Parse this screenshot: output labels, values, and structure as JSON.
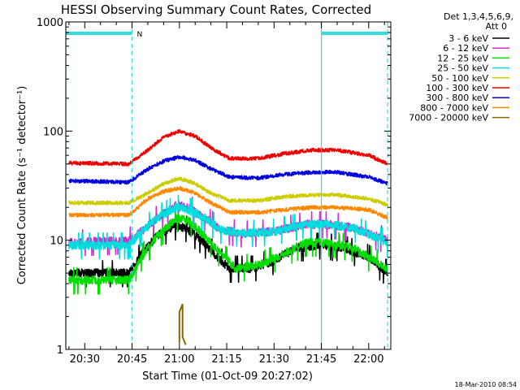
{
  "chart_data": {
    "type": "line",
    "title": "HESSI Observing Summary Count Rates, Corrected",
    "xlabel": "Start Time (01-Oct-09 20:27:02)",
    "ylabel": "Corrected Count Rate (s⁻¹ detector⁻¹)",
    "y_scale": "log",
    "ylim": [
      1,
      1000
    ],
    "xlim": [
      "20:24",
      "22:07"
    ],
    "x_ticks": [
      "20:30",
      "20:45",
      "21:00",
      "21:15",
      "21:30",
      "21:45",
      "22:00"
    ],
    "y_ticks": [
      "1",
      "10",
      "100",
      "1000"
    ],
    "legend_header": [
      "Det 1,3,4,5,6,9,",
      "Att 0"
    ],
    "legend_placement": "right, outside",
    "timestamp": "18-Mar-2010 08:54",
    "annotations": [
      {
        "type": "night_bar",
        "from": "20:24",
        "to": "20:45"
      },
      {
        "type": "night_bar",
        "from": "21:45",
        "to": "22:06"
      },
      {
        "type": "flag_label",
        "text": "N",
        "at": "20:45"
      },
      {
        "type": "vline_solid",
        "at": "20:24"
      },
      {
        "type": "vline_dashed",
        "at": "20:45"
      },
      {
        "type": "vline_solid",
        "at": "21:45"
      },
      {
        "type": "vline_dashed",
        "at": "22:06"
      }
    ],
    "series": [
      {
        "name": "3 - 6 keV",
        "color": "#000000",
        "points": [
          [
            "20:25",
            5
          ],
          [
            "20:44",
            5
          ],
          [
            "20:48",
            7.5
          ],
          [
            "20:53",
            11
          ],
          [
            "20:58",
            13.5
          ],
          [
            "21:02",
            13
          ],
          [
            "21:07",
            10
          ],
          [
            "21:12",
            7
          ],
          [
            "21:16",
            5.5
          ],
          [
            "21:23",
            5.5
          ],
          [
            "21:30",
            6.5
          ],
          [
            "21:37",
            8.5
          ],
          [
            "21:45",
            9
          ],
          [
            "21:52",
            8.5
          ],
          [
            "22:00",
            7
          ],
          [
            "22:06",
            5
          ]
        ]
      },
      {
        "name": "6 - 12 keV",
        "color": "#cc33cc",
        "points": [
          [
            "20:25",
            9.5
          ],
          [
            "20:44",
            10
          ],
          [
            "20:48",
            12
          ],
          [
            "20:53",
            16
          ],
          [
            "20:59",
            21
          ],
          [
            "21:03",
            20
          ],
          [
            "21:08",
            16
          ],
          [
            "21:13",
            12.5
          ],
          [
            "21:20",
            11.5
          ],
          [
            "21:30",
            12
          ],
          [
            "21:40",
            14
          ],
          [
            "21:47",
            14
          ],
          [
            "21:55",
            13
          ],
          [
            "22:06",
            10
          ]
        ]
      },
      {
        "name": "12 - 25 keV",
        "color": "#00dd00",
        "points": [
          [
            "20:25",
            4.3
          ],
          [
            "20:44",
            4.3
          ],
          [
            "20:48",
            7
          ],
          [
            "20:53",
            11
          ],
          [
            "20:59",
            16
          ],
          [
            "21:03",
            15
          ],
          [
            "21:08",
            11
          ],
          [
            "21:13",
            7.5
          ],
          [
            "21:18",
            5.5
          ],
          [
            "21:26",
            6
          ],
          [
            "21:33",
            7.5
          ],
          [
            "21:40",
            9.5
          ],
          [
            "21:47",
            9.5
          ],
          [
            "21:55",
            8.5
          ],
          [
            "22:06",
            5.5
          ]
        ]
      },
      {
        "name": "25 - 50 keV",
        "color": "#00dddd",
        "points": [
          [
            "20:25",
            9
          ],
          [
            "20:44",
            9
          ],
          [
            "20:48",
            12
          ],
          [
            "20:53",
            16
          ],
          [
            "20:59",
            20
          ],
          [
            "21:03",
            19
          ],
          [
            "21:08",
            16
          ],
          [
            "21:13",
            12.5
          ],
          [
            "21:20",
            11.5
          ],
          [
            "21:30",
            12
          ],
          [
            "21:40",
            14
          ],
          [
            "21:47",
            14
          ],
          [
            "21:55",
            13
          ],
          [
            "22:06",
            9.5
          ]
        ]
      },
      {
        "name": "50 - 100 keV",
        "color": "#cccc00",
        "points": [
          [
            "20:25",
            22
          ],
          [
            "20:44",
            22
          ],
          [
            "20:50",
            27
          ],
          [
            "20:55",
            33
          ],
          [
            "21:00",
            37
          ],
          [
            "21:05",
            33
          ],
          [
            "21:10",
            27
          ],
          [
            "21:16",
            23
          ],
          [
            "21:25",
            23
          ],
          [
            "21:33",
            25
          ],
          [
            "21:42",
            26
          ],
          [
            "21:50",
            26
          ],
          [
            "22:00",
            24
          ],
          [
            "22:06",
            21
          ]
        ]
      },
      {
        "name": "100 - 300 keV",
        "color": "#ee0000",
        "points": [
          [
            "20:25",
            51
          ],
          [
            "20:44",
            50
          ],
          [
            "20:50",
            67
          ],
          [
            "20:55",
            88
          ],
          [
            "21:00",
            100
          ],
          [
            "21:05",
            90
          ],
          [
            "21:10",
            70
          ],
          [
            "21:16",
            56
          ],
          [
            "21:25",
            56
          ],
          [
            "21:33",
            62
          ],
          [
            "21:42",
            67
          ],
          [
            "21:50",
            67
          ],
          [
            "22:00",
            60
          ],
          [
            "22:06",
            50
          ]
        ]
      },
      {
        "name": "300 - 800 keV",
        "color": "#0000dd",
        "points": [
          [
            "20:25",
            35
          ],
          [
            "20:44",
            34
          ],
          [
            "20:50",
            45
          ],
          [
            "20:55",
            53
          ],
          [
            "21:00",
            58
          ],
          [
            "21:05",
            54
          ],
          [
            "21:10",
            45
          ],
          [
            "21:16",
            38
          ],
          [
            "21:25",
            37
          ],
          [
            "21:33",
            40
          ],
          [
            "21:42",
            42
          ],
          [
            "21:50",
            42
          ],
          [
            "22:00",
            38
          ],
          [
            "22:06",
            33
          ]
        ]
      },
      {
        "name": "800 - 7000 keV",
        "color": "#ff8800",
        "points": [
          [
            "20:25",
            17
          ],
          [
            "20:44",
            17
          ],
          [
            "20:50",
            24
          ],
          [
            "20:55",
            28
          ],
          [
            "21:00",
            30
          ],
          [
            "21:05",
            27
          ],
          [
            "21:10",
            22
          ],
          [
            "21:16",
            18
          ],
          [
            "21:25",
            18
          ],
          [
            "21:33",
            19
          ],
          [
            "21:42",
            20
          ],
          [
            "21:50",
            20
          ],
          [
            "22:00",
            19
          ],
          [
            "22:06",
            16
          ]
        ]
      },
      {
        "name": "7000 - 20000 keV",
        "color": "#886600",
        "points": [
          [
            "21:00",
            1.15
          ],
          [
            "21:00",
            2.2
          ],
          [
            "21:01",
            2.6
          ],
          [
            "21:01",
            1.3
          ],
          [
            "21:02",
            1.1
          ]
        ]
      }
    ]
  }
}
